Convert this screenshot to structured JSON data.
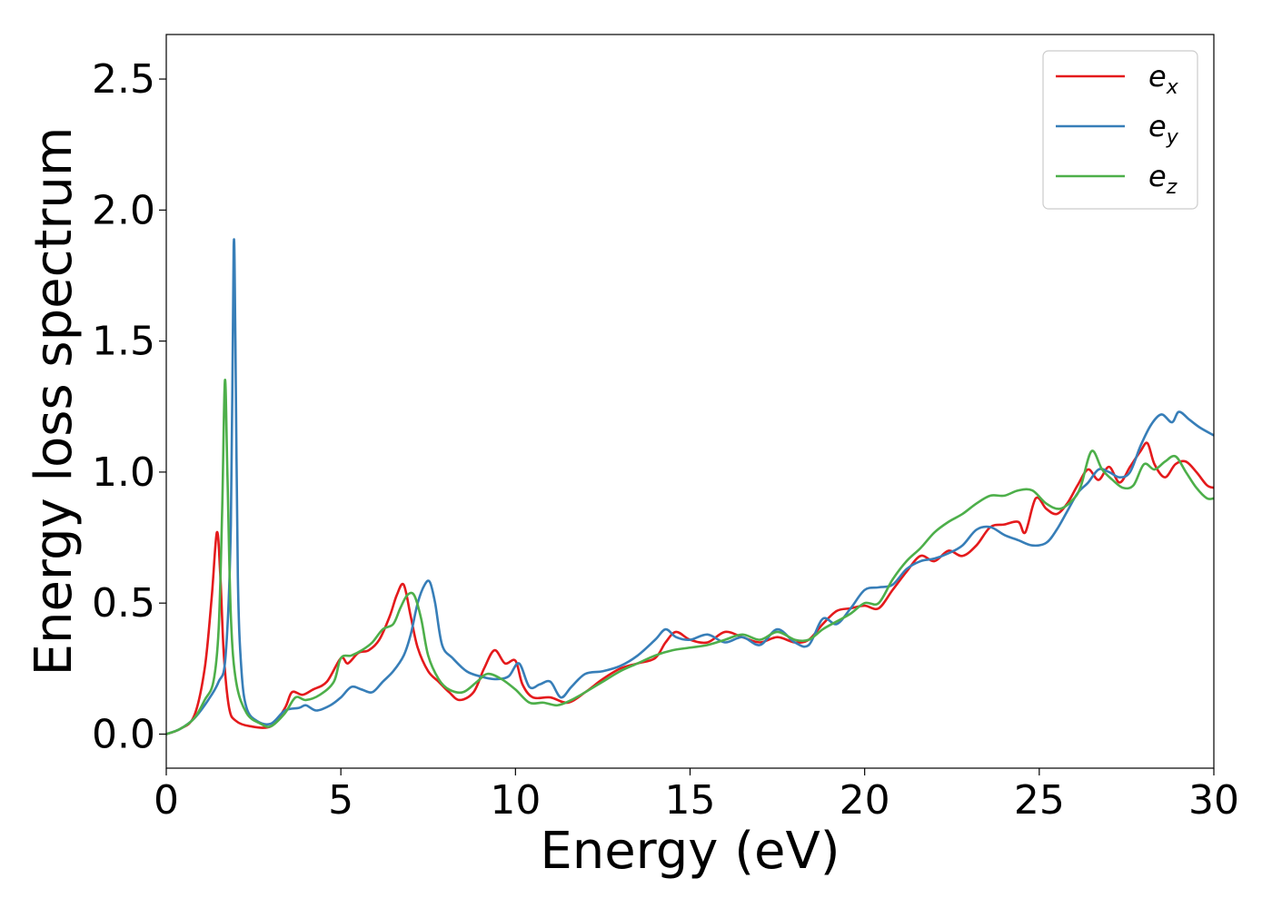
{
  "chart_data": {
    "type": "line",
    "title": "",
    "xlabel": "Energy (eV)",
    "ylabel": "Energy loss spectrum",
    "xlim": [
      0,
      30
    ],
    "ylim": [
      -0.13,
      2.67
    ],
    "xticks": [
      0,
      5,
      10,
      15,
      20,
      25,
      30
    ],
    "xtick_labels": [
      "0",
      "5",
      "10",
      "15",
      "20",
      "25",
      "30"
    ],
    "yticks": [
      0.0,
      0.5,
      1.0,
      1.5,
      2.0,
      2.5
    ],
    "ytick_labels": [
      "0.0",
      "0.5",
      "1.0",
      "1.5",
      "2.0",
      "2.5"
    ],
    "grid": false,
    "legend_position": "top-right",
    "series": [
      {
        "name": "e_x",
        "legend_main": "e",
        "legend_sub": "x",
        "color": "#e41a1c",
        "x": [
          0,
          0.4,
          0.8,
          1.1,
          1.3,
          1.45,
          1.55,
          1.65,
          1.8,
          2.0,
          2.4,
          3.0,
          3.4,
          3.6,
          3.9,
          4.2,
          4.6,
          5.0,
          5.2,
          5.5,
          5.8,
          6.1,
          6.4,
          6.6,
          6.8,
          7.0,
          7.2,
          7.5,
          7.8,
          8.1,
          8.4,
          8.8,
          9.1,
          9.4,
          9.7,
          10.0,
          10.2,
          10.5,
          11.0,
          11.5,
          12.0,
          12.5,
          13.0,
          13.5,
          14.0,
          14.3,
          14.6,
          15.0,
          15.5,
          16.0,
          16.5,
          17.0,
          17.5,
          18.0,
          18.4,
          18.8,
          19.2,
          19.6,
          20.0,
          20.4,
          20.8,
          21.2,
          21.6,
          22.0,
          22.4,
          22.8,
          23.2,
          23.6,
          24.0,
          24.4,
          24.6,
          24.9,
          25.2,
          25.5,
          25.8,
          26.1,
          26.4,
          26.7,
          27.0,
          27.3,
          27.6,
          27.9,
          28.1,
          28.3,
          28.6,
          28.9,
          29.2,
          29.5,
          29.8,
          30.0
        ],
        "y": [
          0.0,
          0.02,
          0.07,
          0.25,
          0.52,
          0.77,
          0.6,
          0.3,
          0.1,
          0.05,
          0.03,
          0.03,
          0.1,
          0.16,
          0.15,
          0.17,
          0.2,
          0.29,
          0.27,
          0.31,
          0.32,
          0.36,
          0.45,
          0.53,
          0.57,
          0.45,
          0.33,
          0.24,
          0.2,
          0.16,
          0.13,
          0.16,
          0.25,
          0.32,
          0.27,
          0.28,
          0.19,
          0.14,
          0.14,
          0.12,
          0.16,
          0.21,
          0.25,
          0.27,
          0.29,
          0.35,
          0.39,
          0.36,
          0.35,
          0.39,
          0.37,
          0.35,
          0.37,
          0.35,
          0.36,
          0.42,
          0.47,
          0.48,
          0.49,
          0.48,
          0.55,
          0.62,
          0.68,
          0.66,
          0.7,
          0.68,
          0.72,
          0.79,
          0.8,
          0.81,
          0.77,
          0.9,
          0.86,
          0.84,
          0.88,
          0.95,
          1.01,
          0.97,
          1.02,
          0.96,
          1.02,
          1.08,
          1.11,
          1.03,
          0.98,
          1.03,
          1.04,
          1.0,
          0.95,
          0.94
        ]
      },
      {
        "name": "e_y",
        "legend_main": "e",
        "legend_sub": "y",
        "color": "#377eb8",
        "x": [
          0,
          0.4,
          0.8,
          1.2,
          1.5,
          1.7,
          1.85,
          1.93,
          1.98,
          2.05,
          2.15,
          2.3,
          2.6,
          3.0,
          3.4,
          3.8,
          4.0,
          4.3,
          4.7,
          5.0,
          5.3,
          5.6,
          5.9,
          6.2,
          6.5,
          6.8,
          7.0,
          7.2,
          7.4,
          7.55,
          7.7,
          7.9,
          8.2,
          8.6,
          9.0,
          9.4,
          9.8,
          10.1,
          10.4,
          10.7,
          11.0,
          11.3,
          11.6,
          12.0,
          12.5,
          13.0,
          13.5,
          14.0,
          14.3,
          14.6,
          15.0,
          15.5,
          16.0,
          16.5,
          17.0,
          17.5,
          18.0,
          18.4,
          18.8,
          19.2,
          19.6,
          20.0,
          20.4,
          20.8,
          21.2,
          21.6,
          22.0,
          22.4,
          22.8,
          23.2,
          23.6,
          24.0,
          24.4,
          24.8,
          25.2,
          25.5,
          25.8,
          26.1,
          26.4,
          26.7,
          27.0,
          27.3,
          27.6,
          27.9,
          28.2,
          28.5,
          28.8,
          29.0,
          29.3,
          29.6,
          30.0
        ],
        "y": [
          0.0,
          0.02,
          0.06,
          0.13,
          0.2,
          0.3,
          0.8,
          1.86,
          1.5,
          0.6,
          0.25,
          0.1,
          0.05,
          0.04,
          0.09,
          0.1,
          0.11,
          0.09,
          0.11,
          0.14,
          0.18,
          0.17,
          0.16,
          0.2,
          0.24,
          0.3,
          0.38,
          0.5,
          0.57,
          0.58,
          0.5,
          0.34,
          0.29,
          0.24,
          0.22,
          0.21,
          0.22,
          0.27,
          0.18,
          0.19,
          0.2,
          0.14,
          0.18,
          0.23,
          0.24,
          0.26,
          0.3,
          0.36,
          0.4,
          0.37,
          0.36,
          0.38,
          0.35,
          0.37,
          0.34,
          0.4,
          0.35,
          0.34,
          0.44,
          0.42,
          0.48,
          0.55,
          0.56,
          0.57,
          0.63,
          0.66,
          0.67,
          0.69,
          0.72,
          0.78,
          0.79,
          0.76,
          0.74,
          0.72,
          0.73,
          0.78,
          0.85,
          0.92,
          0.96,
          1.01,
          1.0,
          0.98,
          1.0,
          1.1,
          1.18,
          1.22,
          1.19,
          1.23,
          1.2,
          1.17,
          1.14
        ]
      },
      {
        "name": "e_z",
        "legend_main": "e",
        "legend_sub": "z",
        "color": "#4daf4a",
        "x": [
          0,
          0.4,
          0.8,
          1.1,
          1.35,
          1.5,
          1.6,
          1.68,
          1.75,
          1.85,
          2.0,
          2.3,
          2.7,
          3.0,
          3.4,
          3.7,
          4.0,
          4.4,
          4.8,
          5.0,
          5.3,
          5.6,
          5.9,
          6.2,
          6.5,
          6.7,
          6.9,
          7.1,
          7.3,
          7.5,
          7.8,
          8.1,
          8.5,
          8.9,
          9.2,
          9.6,
          10.0,
          10.4,
          10.8,
          11.2,
          11.6,
          12.0,
          12.5,
          13.0,
          13.5,
          14.0,
          14.5,
          15.0,
          15.5,
          16.0,
          16.5,
          17.0,
          17.5,
          18.0,
          18.4,
          18.8,
          19.2,
          19.6,
          20.0,
          20.4,
          20.8,
          21.2,
          21.6,
          22.0,
          22.4,
          22.8,
          23.2,
          23.6,
          24.0,
          24.4,
          24.8,
          25.2,
          25.6,
          26.0,
          26.2,
          26.5,
          26.8,
          27.1,
          27.4,
          27.7,
          28.0,
          28.3,
          28.6,
          28.9,
          29.2,
          29.5,
          29.8,
          30.0
        ],
        "y": [
          0.0,
          0.02,
          0.06,
          0.13,
          0.2,
          0.4,
          0.85,
          1.35,
          1.0,
          0.45,
          0.2,
          0.08,
          0.04,
          0.03,
          0.08,
          0.14,
          0.13,
          0.15,
          0.2,
          0.29,
          0.3,
          0.32,
          0.35,
          0.4,
          0.42,
          0.48,
          0.53,
          0.53,
          0.44,
          0.3,
          0.21,
          0.17,
          0.16,
          0.2,
          0.23,
          0.21,
          0.17,
          0.12,
          0.12,
          0.11,
          0.13,
          0.16,
          0.2,
          0.24,
          0.27,
          0.3,
          0.32,
          0.33,
          0.34,
          0.36,
          0.38,
          0.36,
          0.39,
          0.36,
          0.36,
          0.4,
          0.43,
          0.46,
          0.5,
          0.5,
          0.59,
          0.66,
          0.71,
          0.77,
          0.81,
          0.84,
          0.88,
          0.91,
          0.91,
          0.93,
          0.93,
          0.88,
          0.86,
          0.9,
          0.95,
          1.08,
          1.01,
          0.97,
          0.94,
          0.95,
          1.03,
          1.01,
          1.04,
          1.06,
          1.0,
          0.94,
          0.9,
          0.9
        ]
      }
    ]
  }
}
